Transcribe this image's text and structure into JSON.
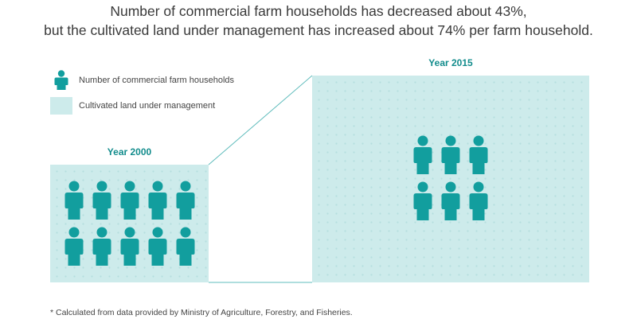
{
  "headline": {
    "line1": "Number of commercial farm households has decreased about 43%,",
    "line2": "but the cultivated land under management has increased about 74% per farm household."
  },
  "legend": {
    "households_label": "Number of commercial farm households",
    "land_label": "Cultivated land under management"
  },
  "year_2000": {
    "label": "Year 2000",
    "household_icons": 10
  },
  "year_2015": {
    "label": "Year 2015",
    "household_icons": 6
  },
  "footnote": "* Calculated from data provided by Ministry of Agriculture, Forestry, and Fisheries.",
  "colors": {
    "person": "#129e9e",
    "land": "#cdebeb",
    "year_label": "#128c8c",
    "connector": "#5fbcbc"
  }
}
